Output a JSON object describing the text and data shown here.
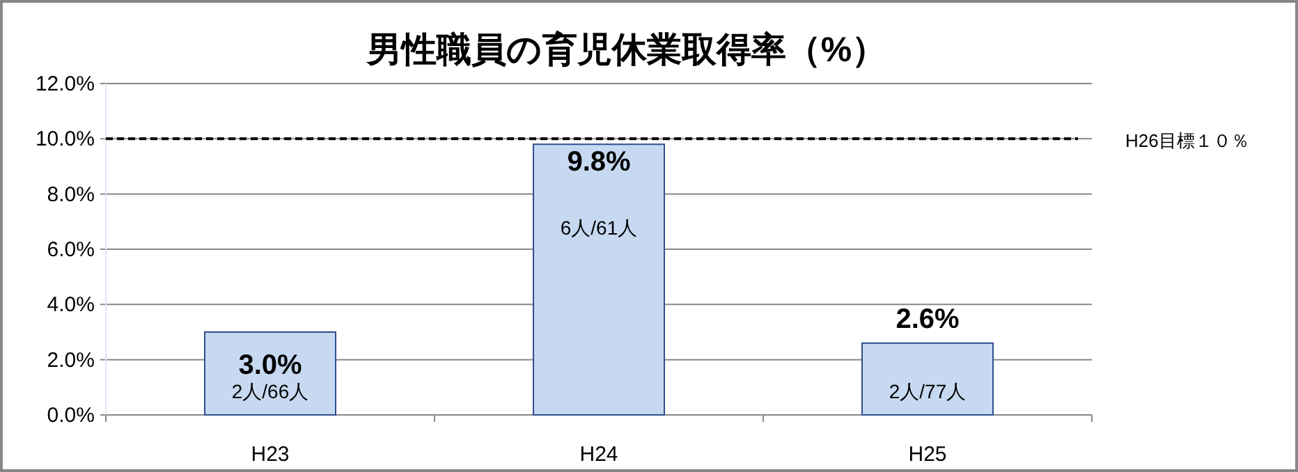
{
  "chart_data": {
    "type": "bar",
    "title": "男性職員の育児休業取得率（%）",
    "categories": [
      "H23",
      "H24",
      "H25"
    ],
    "values": [
      3.0,
      9.8,
      2.6
    ],
    "color": "#c6d9f1",
    "value_labels": [
      "3.0%",
      "9.8%",
      "2.6%"
    ],
    "annotations": [
      "2人/66人",
      "6人/61人",
      "2人/77人"
    ],
    "ylim": [
      0,
      12
    ],
    "yticks": [
      {
        "value": 0,
        "label": "0.0%"
      },
      {
        "value": 2,
        "label": "2.0%"
      },
      {
        "value": 4,
        "label": "4.0%"
      },
      {
        "value": 6,
        "label": "6.0%"
      },
      {
        "value": 8,
        "label": "8.0%"
      },
      {
        "value": 10,
        "label": "10.0%"
      },
      {
        "value": 12,
        "label": "12.0%"
      }
    ],
    "grid": "y",
    "ref_lines": [
      {
        "axis": "y",
        "value": 10,
        "label": "H26目標１０％",
        "color": "#000000",
        "line_style": "dashed"
      }
    ]
  }
}
